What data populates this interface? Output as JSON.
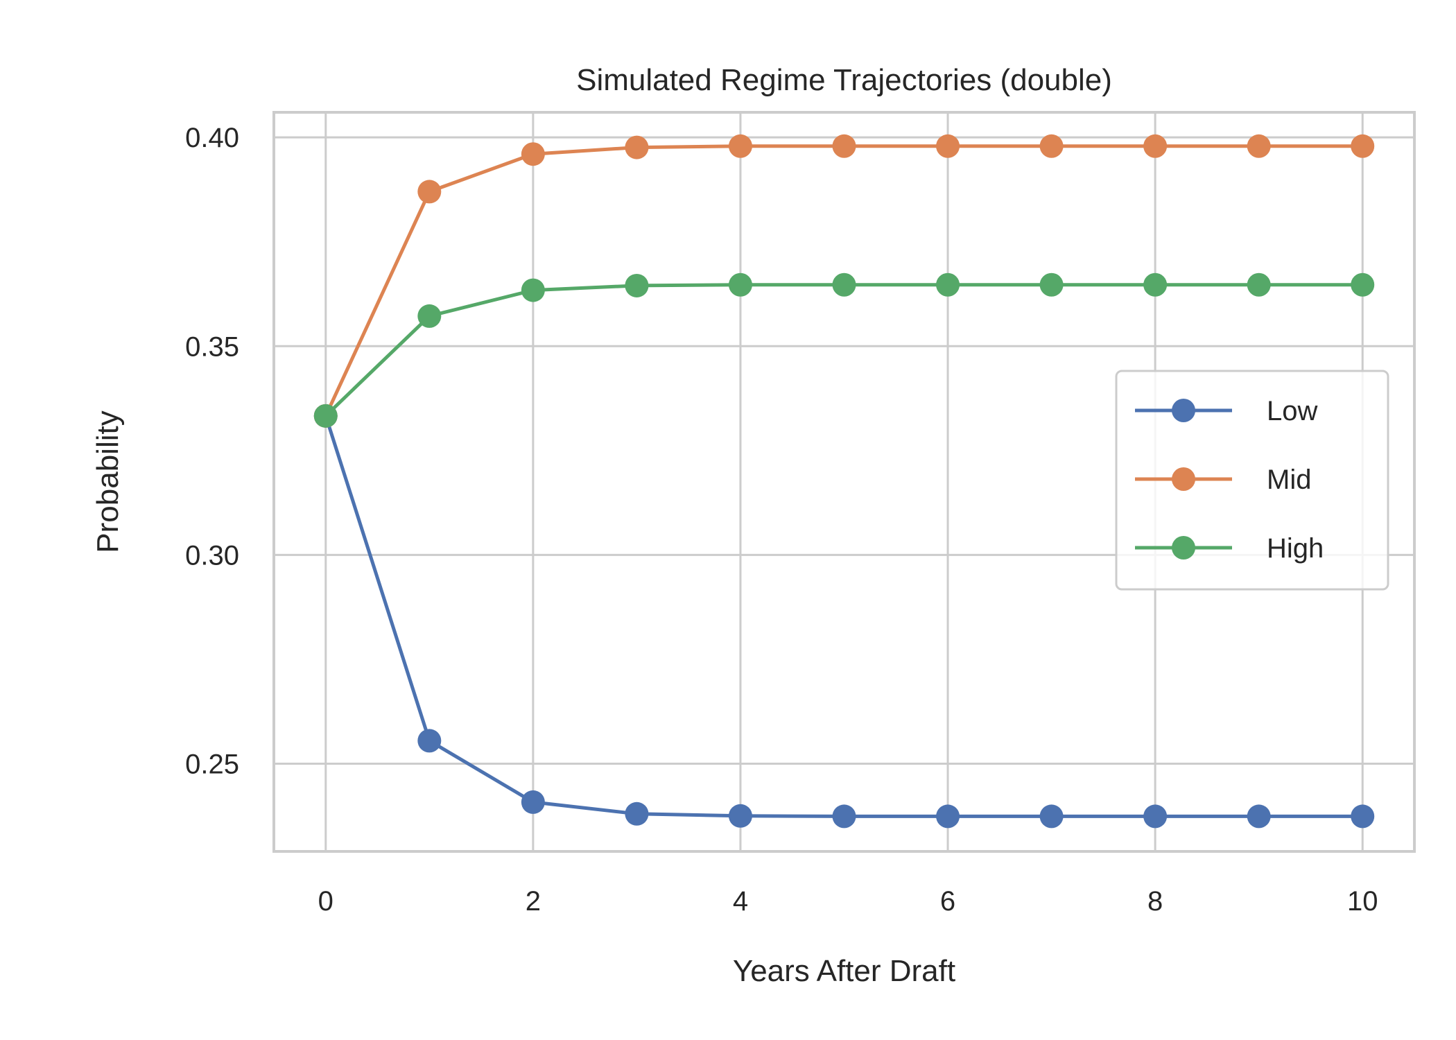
{
  "chart_data": {
    "type": "line",
    "title": "Simulated Regime Trajectories (double)",
    "xlabel": "Years After Draft",
    "ylabel": "Probability",
    "x": [
      0,
      1,
      2,
      3,
      4,
      5,
      6,
      7,
      8,
      9,
      10
    ],
    "xticks": [
      0,
      2,
      4,
      6,
      8,
      10
    ],
    "yticks": [
      0.25,
      0.3,
      0.35,
      0.4
    ],
    "ytick_labels": [
      "0.25",
      "0.30",
      "0.35",
      "0.40"
    ],
    "xlim": [
      -0.5,
      10.5
    ],
    "ylim": [
      0.229,
      0.406
    ],
    "grid": true,
    "legend_position": "center-right",
    "series": [
      {
        "name": "Low",
        "color": "#4c72b0",
        "values": [
          0.3333,
          0.2555,
          0.2408,
          0.238,
          0.2375,
          0.2374,
          0.2374,
          0.2374,
          0.2374,
          0.2374,
          0.2374
        ]
      },
      {
        "name": "Mid",
        "color": "#dd8452",
        "values": [
          0.3333,
          0.387,
          0.396,
          0.3976,
          0.3979,
          0.3979,
          0.3979,
          0.3979,
          0.3979,
          0.3979,
          0.3979
        ]
      },
      {
        "name": "High",
        "color": "#55a868",
        "values": [
          0.3333,
          0.3572,
          0.3634,
          0.3645,
          0.3647,
          0.3647,
          0.3647,
          0.3647,
          0.3647,
          0.3647,
          0.3647
        ]
      }
    ]
  }
}
